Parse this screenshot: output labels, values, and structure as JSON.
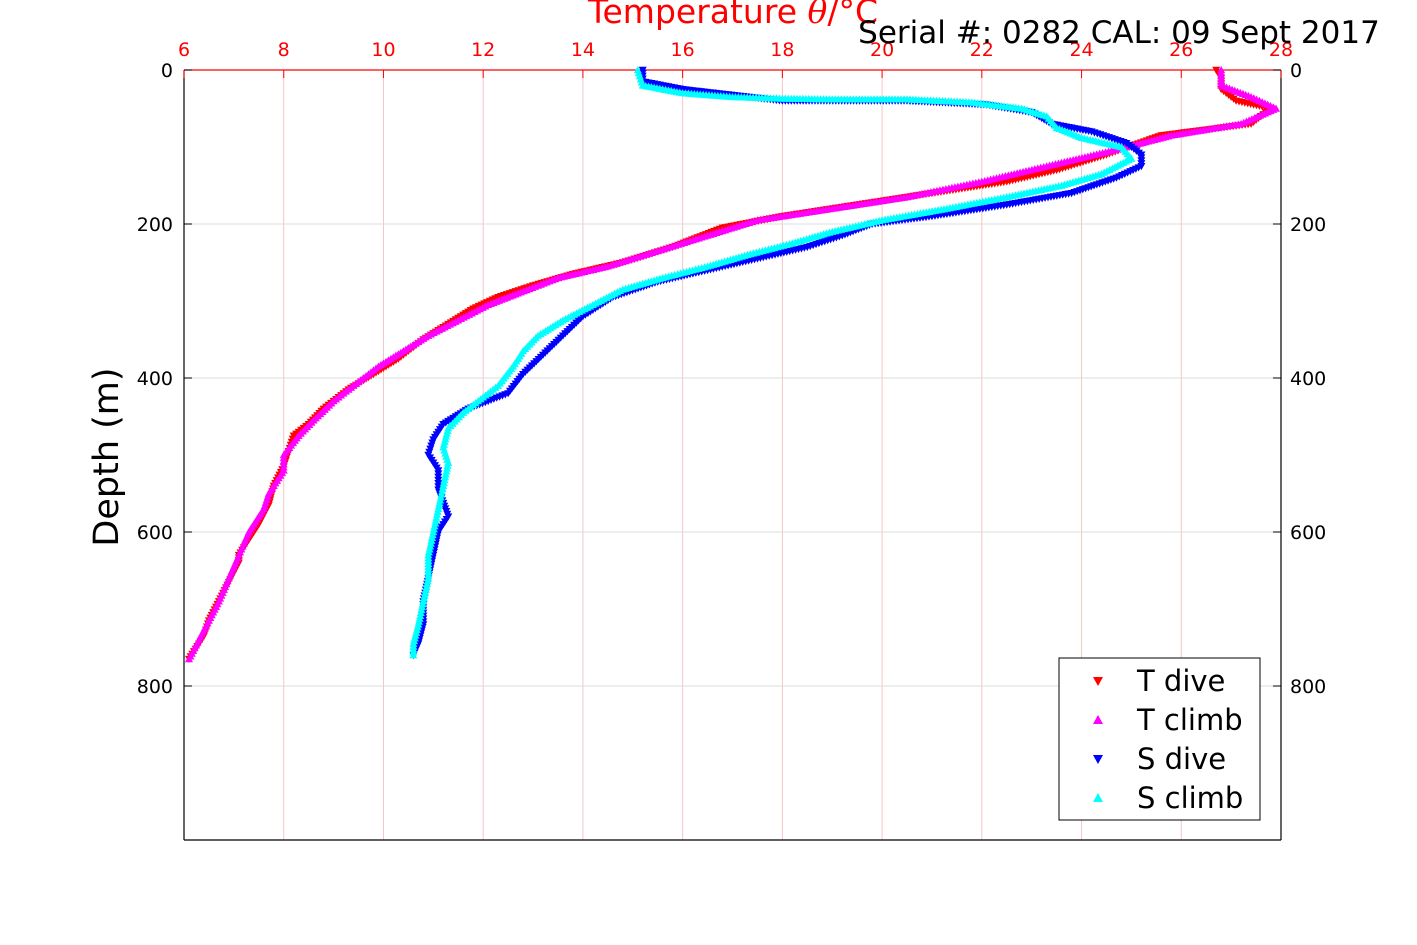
{
  "chart_data": {
    "type": "scatter",
    "title": "Temperature θ/°C",
    "title_italic_part": "θ",
    "serial_label": "Serial #: 0282  CAL: 09 Sept 2017",
    "xlabel": "Temperature θ/°C",
    "ylabel": "Depth (m)",
    "x_axis_position": "top",
    "y_axis_reversed": true,
    "xlim": [
      6,
      28
    ],
    "ylim": [
      0,
      1000
    ],
    "xticks": [
      6,
      8,
      10,
      12,
      14,
      16,
      18,
      20,
      22,
      24,
      26,
      28
    ],
    "yticks": [
      0,
      200,
      400,
      600,
      800
    ],
    "grid": true,
    "legend_position": "bottom-right",
    "colors": {
      "t_dive": "#ff0000",
      "t_climb": "#ff00ff",
      "s_dive": "#0000ff",
      "s_climb": "#00ffff",
      "top_axis": "#ff0000",
      "grid_red": "#f2c6c6",
      "grid_gray": "#dcdcdc"
    },
    "series": [
      {
        "name": "T dive",
        "marker": "triangle-down",
        "color": "#ff0000",
        "points": [
          [
            26.7,
            0
          ],
          [
            26.8,
            10
          ],
          [
            26.8,
            25
          ],
          [
            27.1,
            40
          ],
          [
            27.8,
            50
          ],
          [
            27.4,
            70
          ],
          [
            25.6,
            85
          ],
          [
            24.5,
            110
          ],
          [
            23.5,
            130
          ],
          [
            22.5,
            145
          ],
          [
            21,
            160
          ],
          [
            19.5,
            175
          ],
          [
            18,
            190
          ],
          [
            16.8,
            205
          ],
          [
            15.8,
            230
          ],
          [
            14.8,
            250
          ],
          [
            13.8,
            265
          ],
          [
            13,
            280
          ],
          [
            12.3,
            295
          ],
          [
            11.8,
            310
          ],
          [
            11.3,
            330
          ],
          [
            10.8,
            350
          ],
          [
            10.3,
            375
          ],
          [
            9.8,
            395
          ],
          [
            9.3,
            415
          ],
          [
            8.8,
            440
          ],
          [
            8.5,
            460
          ],
          [
            8.2,
            475
          ],
          [
            8.1,
            495
          ],
          [
            8,
            515
          ],
          [
            7.8,
            540
          ],
          [
            7.7,
            565
          ],
          [
            7.5,
            590
          ],
          [
            7.3,
            610
          ],
          [
            7.1,
            630
          ],
          [
            7.1,
            640
          ],
          [
            6.9,
            665
          ],
          [
            6.7,
            690
          ],
          [
            6.5,
            715
          ],
          [
            6.4,
            735
          ],
          [
            6.2,
            755
          ],
          [
            6.1,
            765
          ]
        ]
      },
      {
        "name": "T climb",
        "marker": "triangle-up",
        "color": "#ff00ff",
        "points": [
          [
            26.8,
            0
          ],
          [
            26.8,
            20
          ],
          [
            27.4,
            35
          ],
          [
            27.9,
            50
          ],
          [
            27.2,
            70
          ],
          [
            25.8,
            85
          ],
          [
            24.6,
            105
          ],
          [
            23.3,
            125
          ],
          [
            22,
            145
          ],
          [
            20.5,
            165
          ],
          [
            19,
            180
          ],
          [
            17.5,
            195
          ],
          [
            16.5,
            215
          ],
          [
            15.5,
            235
          ],
          [
            14.5,
            255
          ],
          [
            13.5,
            270
          ],
          [
            12.7,
            290
          ],
          [
            12.1,
            305
          ],
          [
            11.5,
            325
          ],
          [
            10.9,
            345
          ],
          [
            10.4,
            365
          ],
          [
            9.9,
            385
          ],
          [
            9.4,
            410
          ],
          [
            9,
            430
          ],
          [
            8.6,
            455
          ],
          [
            8.3,
            475
          ],
          [
            8,
            500
          ],
          [
            8,
            520
          ],
          [
            7.7,
            550
          ],
          [
            7.6,
            570
          ],
          [
            7.3,
            600
          ],
          [
            7.1,
            630
          ],
          [
            6.9,
            660
          ],
          [
            6.7,
            690
          ],
          [
            6.5,
            715
          ],
          [
            6.3,
            740
          ],
          [
            6.1,
            765
          ]
        ]
      },
      {
        "name": "S dive",
        "marker": "triangle-down",
        "color": "#0000ff",
        "points": [
          [
            15.2,
            0
          ],
          [
            15.2,
            15
          ],
          [
            16,
            25
          ],
          [
            18,
            40
          ],
          [
            20.5,
            40
          ],
          [
            22.1,
            45
          ],
          [
            23,
            55
          ],
          [
            23.4,
            70
          ],
          [
            24.2,
            80
          ],
          [
            24.9,
            95
          ],
          [
            25.2,
            110
          ],
          [
            25.2,
            125
          ],
          [
            24.7,
            140
          ],
          [
            23.8,
            160
          ],
          [
            22.5,
            175
          ],
          [
            21,
            190
          ],
          [
            19.8,
            200
          ],
          [
            19.2,
            215
          ],
          [
            18.5,
            230
          ],
          [
            17.5,
            245
          ],
          [
            16.5,
            260
          ],
          [
            15.5,
            275
          ],
          [
            14.6,
            295
          ],
          [
            14,
            320
          ],
          [
            13.6,
            345
          ],
          [
            13.2,
            370
          ],
          [
            12.8,
            395
          ],
          [
            12.5,
            420
          ],
          [
            11.7,
            440
          ],
          [
            11.2,
            460
          ],
          [
            11,
            480
          ],
          [
            10.9,
            500
          ],
          [
            11.1,
            520
          ],
          [
            11.1,
            545
          ],
          [
            11.3,
            580
          ],
          [
            11.1,
            600
          ],
          [
            11,
            630
          ],
          [
            10.9,
            660
          ],
          [
            10.8,
            690
          ],
          [
            10.8,
            720
          ],
          [
            10.7,
            745
          ],
          [
            10.6,
            760
          ]
        ]
      },
      {
        "name": "S climb",
        "marker": "triangle-up",
        "color": "#00ffff",
        "points": [
          [
            15.1,
            0
          ],
          [
            15.2,
            20
          ],
          [
            16,
            30
          ],
          [
            17,
            35
          ],
          [
            18,
            37
          ],
          [
            19,
            38
          ],
          [
            20.5,
            38
          ],
          [
            21.8,
            42
          ],
          [
            22.8,
            50
          ],
          [
            23.3,
            60
          ],
          [
            23.5,
            75
          ],
          [
            24,
            88
          ],
          [
            24.8,
            100
          ],
          [
            25,
            115
          ],
          [
            24.4,
            135
          ],
          [
            23.6,
            150
          ],
          [
            22.5,
            165
          ],
          [
            21.3,
            180
          ],
          [
            20,
            195
          ],
          [
            19,
            210
          ],
          [
            18.2,
            225
          ],
          [
            17.3,
            240
          ],
          [
            16.5,
            255
          ],
          [
            15.6,
            270
          ],
          [
            14.8,
            285
          ],
          [
            14.2,
            305
          ],
          [
            13.6,
            325
          ],
          [
            13.1,
            345
          ],
          [
            12.8,
            365
          ],
          [
            12.6,
            385
          ],
          [
            12.3,
            410
          ],
          [
            12,
            425
          ],
          [
            11.6,
            445
          ],
          [
            11.3,
            465
          ],
          [
            11.2,
            490
          ],
          [
            11.3,
            510
          ],
          [
            11.2,
            540
          ],
          [
            11.1,
            570
          ],
          [
            11,
            600
          ],
          [
            10.9,
            630
          ],
          [
            10.9,
            660
          ],
          [
            10.8,
            690
          ],
          [
            10.7,
            720
          ],
          [
            10.6,
            745
          ],
          [
            10.6,
            760
          ]
        ]
      }
    ]
  }
}
